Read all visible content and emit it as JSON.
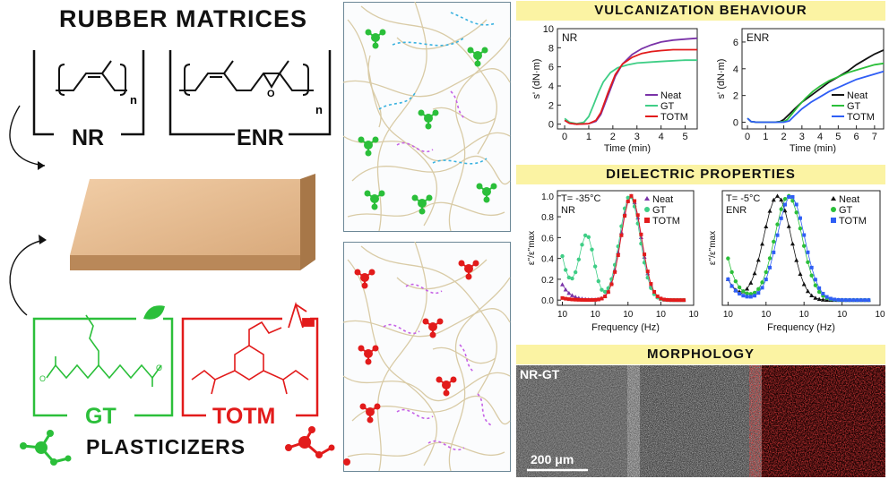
{
  "left": {
    "rubber_title": "RUBBER MATRICES",
    "nr_label": "NR",
    "enr_label": "ENR",
    "subscript_n": "n",
    "epoxide_o": "O",
    "gt_label": "GT",
    "totm_label": "TOTM",
    "plasticizers_title": "PLASTICIZERS"
  },
  "right": {
    "vulcanization_header": "VULCANIZATION BEHAVIOUR",
    "dielectric_header": "DIELECTRIC PROPERTIES",
    "morphology_header": "MORPHOLOGY",
    "morph_tag": "NR-GT",
    "scale_bar": "200 μm"
  },
  "colors": {
    "gt": "#2bbf3a",
    "totm": "#e21b1b",
    "neat_vulc": "#7a33a8",
    "neat_enr": "#111111",
    "gt_vulc": "#3fce86",
    "totm_blue": "#2f5ef5",
    "header_bg": "#fbf3a3",
    "tan": "#d2a77a"
  },
  "chart_data": [
    {
      "type": "line",
      "panel": "NR",
      "xlabel": "Time (min)",
      "ylabel": "s' (dN·m)",
      "xlim": [
        -0.3,
        5.5
      ],
      "ylim": [
        -0.5,
        10
      ],
      "xticks": [
        0,
        1,
        2,
        3,
        4,
        5
      ],
      "yticks": [
        0,
        2,
        4,
        6,
        8,
        10
      ],
      "legend": [
        "Neat",
        "GT",
        "TOTM"
      ],
      "legend_position": "bottom-right",
      "series": [
        {
          "name": "Neat",
          "x": [
            0,
            0.2,
            0.5,
            1.0,
            1.3,
            1.5,
            1.8,
            2.1,
            2.4,
            2.8,
            3.2,
            3.6,
            4.0,
            4.5,
            5.0,
            5.5
          ],
          "y": [
            0.4,
            0.1,
            0.0,
            0.05,
            0.3,
            1.0,
            3.0,
            5.0,
            6.3,
            7.3,
            7.9,
            8.3,
            8.6,
            8.8,
            8.9,
            9.0
          ]
        },
        {
          "name": "GT",
          "x": [
            0,
            0.2,
            0.5,
            0.8,
            1.0,
            1.2,
            1.4,
            1.6,
            1.9,
            2.2,
            2.6,
            3.0,
            3.6,
            4.2,
            5.0,
            5.5
          ],
          "y": [
            0.6,
            0.2,
            0.05,
            0.2,
            0.8,
            2.0,
            3.3,
            4.4,
            5.4,
            5.9,
            6.2,
            6.4,
            6.5,
            6.6,
            6.7,
            6.7
          ]
        },
        {
          "name": "TOTM",
          "x": [
            0,
            0.2,
            0.5,
            1.0,
            1.3,
            1.5,
            1.8,
            2.1,
            2.4,
            2.8,
            3.2,
            3.6,
            4.0,
            4.5,
            5.0,
            5.5
          ],
          "y": [
            0.4,
            0.1,
            0.0,
            0.05,
            0.4,
            1.2,
            3.3,
            5.2,
            6.3,
            7.0,
            7.4,
            7.6,
            7.7,
            7.8,
            7.8,
            7.8
          ]
        }
      ]
    },
    {
      "type": "line",
      "panel": "ENR",
      "xlabel": "Time (min)",
      "ylabel": "s' (dN·m)",
      "xlim": [
        -0.3,
        7.5
      ],
      "ylim": [
        -0.5,
        7
      ],
      "xticks": [
        0,
        1,
        2,
        3,
        4,
        5,
        6,
        7
      ],
      "yticks": [
        0,
        2,
        4,
        6
      ],
      "legend": [
        "Neat",
        "GT",
        "TOTM"
      ],
      "legend_position": "bottom-right",
      "series": [
        {
          "name": "Neat",
          "x": [
            0,
            0.2,
            0.5,
            1.0,
            1.5,
            1.8,
            2.0,
            2.3,
            2.6,
            3.0,
            3.5,
            4.0,
            4.5,
            5.0,
            5.5,
            6.0,
            6.5,
            7.0,
            7.5
          ],
          "y": [
            0.3,
            0.05,
            0.0,
            0.0,
            0.0,
            0.05,
            0.2,
            0.6,
            1.0,
            1.5,
            2.0,
            2.5,
            3.0,
            3.4,
            3.8,
            4.3,
            4.7,
            5.1,
            5.4
          ]
        },
        {
          "name": "GT",
          "x": [
            0,
            0.2,
            0.5,
            1.0,
            1.5,
            2.0,
            2.2,
            2.5,
            2.8,
            3.2,
            3.6,
            4.0,
            4.5,
            5.0,
            5.5,
            6.0,
            6.5,
            7.0,
            7.5
          ],
          "y": [
            0.3,
            0.05,
            0.0,
            0.0,
            0.0,
            0.05,
            0.2,
            0.7,
            1.2,
            1.8,
            2.3,
            2.7,
            3.1,
            3.4,
            3.7,
            3.9,
            4.1,
            4.3,
            4.4
          ]
        },
        {
          "name": "TOTM",
          "x": [
            0,
            0.2,
            0.5,
            1.0,
            1.5,
            2.0,
            2.3,
            2.6,
            3.0,
            3.5,
            4.0,
            4.5,
            5.0,
            5.5,
            6.0,
            6.5,
            7.0,
            7.5
          ],
          "y": [
            0.3,
            0.05,
            0.0,
            0.0,
            0.0,
            0.0,
            0.1,
            0.5,
            1.0,
            1.5,
            1.9,
            2.3,
            2.6,
            2.9,
            3.2,
            3.4,
            3.6,
            3.8
          ]
        }
      ]
    },
    {
      "type": "scatter",
      "panel": "NR",
      "annotation": "T= -35°C",
      "xlabel": "Frequency (Hz)",
      "ylabel": "ε''/ε''max",
      "xscale": "log",
      "xlim": [
        0.005,
        1000000
      ],
      "ylim": [
        -0.05,
        1.05
      ],
      "xticks": [
        0.01,
        1,
        100,
        10000,
        1000000
      ],
      "xtick_labels": [
        "10-2",
        "100",
        "102",
        "104",
        "106"
      ],
      "yticks": [
        0.0,
        0.2,
        0.4,
        0.6,
        0.8,
        1.0
      ],
      "legend": [
        "Neat",
        "GT",
        "TOTM"
      ],
      "legend_position": "top-right",
      "series": [
        {
          "name": "Neat",
          "marker": "triangle",
          "peak_hz": 150,
          "low_freq_value": 0.15
        },
        {
          "name": "GT",
          "marker": "circle",
          "peak_hz": 130,
          "secondary_peak_hz": 0.3,
          "secondary_peak_value": 0.62,
          "low_freq_value": 0.42
        },
        {
          "name": "TOTM",
          "marker": "square",
          "peak_hz": 160,
          "low_freq_value": 0.02
        }
      ]
    },
    {
      "type": "scatter",
      "panel": "ENR",
      "annotation": "T= -5°C",
      "xlabel": "Frequency (Hz)",
      "ylabel": "ε''/ε''max",
      "xscale": "log",
      "xlim": [
        0.005,
        1000000
      ],
      "ylim": [
        -0.05,
        1.05
      ],
      "xticks": [
        0.01,
        1,
        100,
        10000,
        1000000
      ],
      "xtick_labels": [
        "10-2",
        "100",
        "102",
        "104",
        "106"
      ],
      "legend": [
        "Neat",
        "GT",
        "TOTM"
      ],
      "legend_position": "top-right",
      "series": [
        {
          "name": "Neat",
          "marker": "triangle",
          "peak_hz": 4,
          "low_freq_value": 0.2
        },
        {
          "name": "GT",
          "marker": "circle",
          "peak_hz": 15,
          "low_freq_value": 0.4
        },
        {
          "name": "TOTM",
          "marker": "square",
          "peak_hz": 20,
          "low_freq_value": 0.2
        }
      ]
    }
  ]
}
